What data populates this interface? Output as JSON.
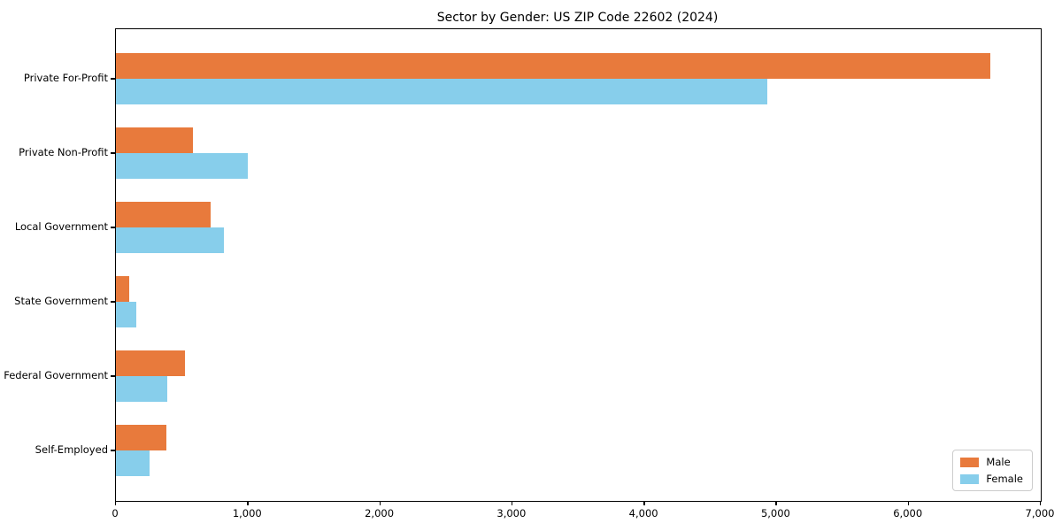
{
  "chart_data": {
    "type": "bar",
    "orientation": "horizontal",
    "title": "Sector by Gender: US ZIP Code 22602 (2024)",
    "categories": [
      "Private For-Profit",
      "Private Non-Profit",
      "Local Government",
      "State Government",
      "Federal Government",
      "Self-Employed"
    ],
    "series": [
      {
        "name": "Male",
        "color": "#E87A3C",
        "values": [
          6620,
          580,
          720,
          100,
          520,
          380
        ]
      },
      {
        "name": "Female",
        "color": "#87CEEB",
        "values": [
          4930,
          1000,
          820,
          155,
          390,
          255
        ]
      }
    ],
    "xlabel": "",
    "ylabel": "",
    "xlim": [
      0,
      7000
    ],
    "x_ticks": [
      0,
      1000,
      2000,
      3000,
      4000,
      5000,
      6000,
      7000
    ],
    "x_tick_labels": [
      "0",
      "1,000",
      "2,000",
      "3,000",
      "4,000",
      "5,000",
      "6,000",
      "7,000"
    ],
    "grid": false,
    "legend_position": "lower-right",
    "spine_color": "#000000",
    "background_color": "#ffffff"
  }
}
